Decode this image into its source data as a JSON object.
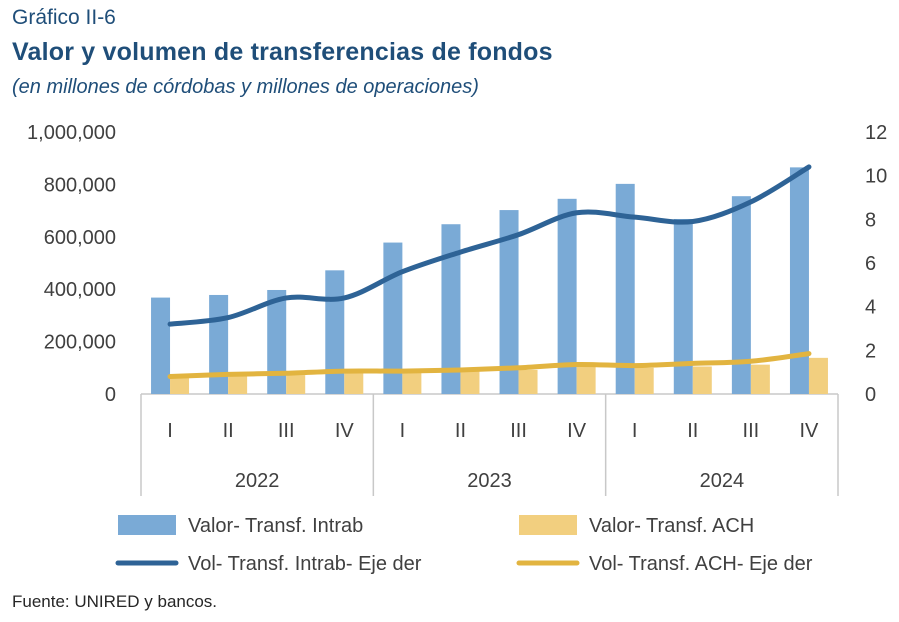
{
  "header": {
    "label": "Gráfico II-6",
    "title": "Valor y volumen de transferencias de fondos",
    "subtitle": "(en millones de córdobas y millones de operaciones)"
  },
  "source": "Fuente: UNIRED y bancos.",
  "chart_data": {
    "type": "bar",
    "categories": [
      "I",
      "II",
      "III",
      "IV",
      "I",
      "II",
      "III",
      "IV",
      "I",
      "II",
      "III",
      "IV"
    ],
    "category_groups": [
      {
        "label": "2022",
        "count": 4
      },
      {
        "label": "2023",
        "count": 4
      },
      {
        "label": "2024",
        "count": 4
      }
    ],
    "y_left": {
      "ylim": [
        0,
        1000000
      ],
      "ticks": [
        "0",
        "200,000",
        "400,000",
        "600,000",
        "800,000",
        "1,000,000"
      ]
    },
    "y_right": {
      "ylim": [
        0,
        12
      ],
      "ticks": [
        "0",
        "2",
        "4",
        "6",
        "8",
        "10",
        "12"
      ]
    },
    "series": [
      {
        "name": "Valor- Transf. Intrab",
        "kind": "bar",
        "axis": "left",
        "color": "#7aaad6",
        "values": [
          368000,
          378000,
          397000,
          472000,
          578000,
          648000,
          702000,
          745000,
          802000,
          668000,
          755000,
          865000
        ]
      },
      {
        "name": "Valor- Transf. ACH",
        "kind": "bar",
        "axis": "left",
        "color": "#f2cf7f",
        "values": [
          65000,
          68000,
          72000,
          80000,
          82000,
          86000,
          92000,
          108000,
          100000,
          105000,
          112000,
          138000
        ]
      },
      {
        "name": "Vol- Transf. Intrab- Eje der",
        "kind": "line",
        "axis": "right",
        "color": "#2e6396",
        "values": [
          3.2,
          3.5,
          4.4,
          4.4,
          5.6,
          6.5,
          7.3,
          8.3,
          8.1,
          7.9,
          8.8,
          10.4
        ]
      },
      {
        "name": "Vol- Transf. ACH- Eje der",
        "kind": "line",
        "axis": "right",
        "color": "#e2b440",
        "values": [
          0.8,
          0.9,
          0.95,
          1.05,
          1.05,
          1.1,
          1.2,
          1.35,
          1.3,
          1.4,
          1.5,
          1.85
        ]
      }
    ],
    "grid": false,
    "legend_position": "bottom"
  }
}
